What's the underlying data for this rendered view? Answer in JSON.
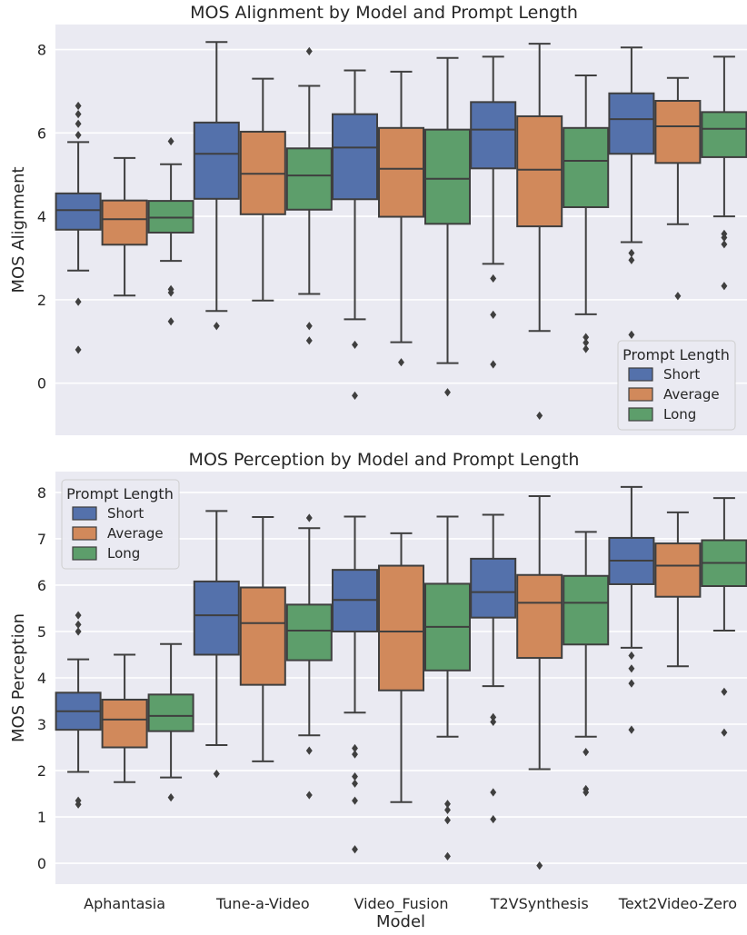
{
  "figure": {
    "xlabel": "Model",
    "categories": [
      "Aphantasia",
      "Tune-a-Video",
      "Video_Fusion",
      "T2VSynthesis",
      "Text2Video-Zero"
    ],
    "legend_title": "Prompt Length",
    "legend_entries": [
      "Short",
      "Average",
      "Long"
    ],
    "colors": {
      "Short": "#5471ab",
      "Average": "#d1895b",
      "Long": "#5d9e6b"
    }
  },
  "chart_data": [
    {
      "type": "box",
      "title": "MOS Alignment by Model and Prompt Length",
      "ylabel": "MOS Alignment",
      "xlabel": "",
      "ylim": [
        -1.25,
        8.6
      ],
      "yticks": [
        0,
        2,
        4,
        6,
        8
      ],
      "legend_placement": "lower-right",
      "grid": true,
      "categories": [
        "Aphantasia",
        "Tune-a-Video",
        "Video_Fusion",
        "T2VSynthesis",
        "Text2Video-Zero"
      ],
      "series": [
        {
          "name": "Short",
          "boxes": [
            {
              "whislo": 2.7,
              "q1": 3.68,
              "med": 4.15,
              "q3": 4.55,
              "whishi": 5.78,
              "fliers": [
                6.65,
                6.45,
                6.22,
                5.95,
                1.95,
                0.8
              ]
            },
            {
              "whislo": 1.73,
              "q1": 4.42,
              "med": 5.5,
              "q3": 6.25,
              "whishi": 8.18,
              "fliers": [
                1.37
              ]
            },
            {
              "whislo": 1.53,
              "q1": 4.41,
              "med": 5.65,
              "q3": 6.45,
              "whishi": 7.5,
              "fliers": [
                0.92,
                -0.3
              ]
            },
            {
              "whislo": 2.86,
              "q1": 5.15,
              "med": 6.08,
              "q3": 6.74,
              "whishi": 7.83,
              "fliers": [
                2.51,
                1.64,
                0.45
              ]
            },
            {
              "whislo": 3.38,
              "q1": 5.5,
              "med": 6.33,
              "q3": 6.95,
              "whishi": 8.05,
              "fliers": [
                3.12,
                2.95,
                1.16
              ]
            }
          ]
        },
        {
          "name": "Average",
          "boxes": [
            {
              "whislo": 2.1,
              "q1": 3.32,
              "med": 3.93,
              "q3": 4.38,
              "whishi": 5.4,
              "fliers": []
            },
            {
              "whislo": 1.98,
              "q1": 4.05,
              "med": 5.02,
              "q3": 6.03,
              "whishi": 7.3,
              "fliers": []
            },
            {
              "whislo": 0.98,
              "q1": 3.99,
              "med": 5.14,
              "q3": 6.12,
              "whishi": 7.47,
              "fliers": [
                0.5
              ]
            },
            {
              "whislo": 1.25,
              "q1": 3.76,
              "med": 5.12,
              "q3": 6.4,
              "whishi": 8.14,
              "fliers": [
                -0.78
              ]
            },
            {
              "whislo": 3.81,
              "q1": 5.28,
              "med": 6.16,
              "q3": 6.77,
              "whishi": 7.32,
              "fliers": [
                2.09
              ]
            }
          ]
        },
        {
          "name": "Long",
          "boxes": [
            {
              "whislo": 2.93,
              "q1": 3.61,
              "med": 3.97,
              "q3": 4.37,
              "whishi": 5.25,
              "fliers": [
                5.8,
                2.25,
                2.17,
                1.48
              ]
            },
            {
              "whislo": 2.14,
              "q1": 4.16,
              "med": 4.98,
              "q3": 5.63,
              "whishi": 7.13,
              "fliers": [
                7.96,
                1.37,
                1.02
              ]
            },
            {
              "whislo": 0.48,
              "q1": 3.82,
              "med": 4.9,
              "q3": 6.08,
              "whishi": 7.8,
              "fliers": [
                -0.22
              ]
            },
            {
              "whislo": 1.65,
              "q1": 4.22,
              "med": 5.33,
              "q3": 6.12,
              "whishi": 7.38,
              "fliers": [
                1.1,
                0.97,
                0.82
              ]
            },
            {
              "whislo": 4.0,
              "q1": 5.42,
              "med": 6.1,
              "q3": 6.5,
              "whishi": 7.83,
              "fliers": [
                3.58,
                3.49,
                3.33,
                2.33
              ]
            }
          ]
        }
      ]
    },
    {
      "type": "box",
      "title": "MOS Perception by Model and Prompt Length",
      "ylabel": "MOS Perception",
      "xlabel": "Model",
      "ylim": [
        -0.45,
        8.45
      ],
      "yticks": [
        0,
        1,
        2,
        3,
        4,
        5,
        6,
        7,
        8
      ],
      "legend_placement": "upper-left",
      "grid": true,
      "categories": [
        "Aphantasia",
        "Tune-a-Video",
        "Video_Fusion",
        "T2VSynthesis",
        "Text2Video-Zero"
      ],
      "series": [
        {
          "name": "Short",
          "boxes": [
            {
              "whislo": 1.97,
              "q1": 2.88,
              "med": 3.28,
              "q3": 3.68,
              "whishi": 4.4,
              "fliers": [
                5.35,
                5.15,
                5.0,
                1.35,
                1.27
              ]
            },
            {
              "whislo": 2.55,
              "q1": 4.5,
              "med": 5.35,
              "q3": 6.08,
              "whishi": 7.6,
              "fliers": [
                1.93
              ]
            },
            {
              "whislo": 3.25,
              "q1": 5.0,
              "med": 5.68,
              "q3": 6.33,
              "whishi": 7.48,
              "fliers": [
                2.48,
                2.35,
                1.87,
                1.72,
                1.35,
                0.3
              ]
            },
            {
              "whislo": 3.82,
              "q1": 5.3,
              "med": 5.85,
              "q3": 6.57,
              "whishi": 7.52,
              "fliers": [
                3.15,
                3.05,
                1.53,
                0.95
              ]
            },
            {
              "whislo": 4.65,
              "q1": 6.02,
              "med": 6.53,
              "q3": 7.02,
              "whishi": 8.12,
              "fliers": [
                4.48,
                4.2,
                3.88,
                2.88
              ]
            }
          ]
        },
        {
          "name": "Average",
          "boxes": [
            {
              "whislo": 1.75,
              "q1": 2.5,
              "med": 3.1,
              "q3": 3.53,
              "whishi": 4.5,
              "fliers": []
            },
            {
              "whislo": 2.2,
              "q1": 3.85,
              "med": 5.18,
              "q3": 5.95,
              "whishi": 7.47,
              "fliers": []
            },
            {
              "whislo": 1.32,
              "q1": 3.73,
              "med": 5.0,
              "q3": 6.42,
              "whishi": 7.12,
              "fliers": []
            },
            {
              "whislo": 2.03,
              "q1": 4.43,
              "med": 5.62,
              "q3": 6.22,
              "whishi": 7.92,
              "fliers": [
                -0.05
              ]
            },
            {
              "whislo": 4.25,
              "q1": 5.75,
              "med": 6.42,
              "q3": 6.9,
              "whishi": 7.57,
              "fliers": []
            }
          ]
        },
        {
          "name": "Long",
          "boxes": [
            {
              "whislo": 1.85,
              "q1": 2.85,
              "med": 3.18,
              "q3": 3.64,
              "whishi": 4.73,
              "fliers": [
                1.42
              ]
            },
            {
              "whislo": 2.76,
              "q1": 4.38,
              "med": 5.02,
              "q3": 5.58,
              "whishi": 7.23,
              "fliers": [
                7.45,
                2.43,
                1.47
              ]
            },
            {
              "whislo": 2.73,
              "q1": 4.16,
              "med": 5.1,
              "q3": 6.03,
              "whishi": 7.48,
              "fliers": [
                1.28,
                1.15,
                0.93,
                0.15
              ]
            },
            {
              "whislo": 2.73,
              "q1": 4.72,
              "med": 5.62,
              "q3": 6.2,
              "whishi": 7.15,
              "fliers": [
                2.4,
                1.6,
                1.53
              ]
            },
            {
              "whislo": 5.02,
              "q1": 5.98,
              "med": 6.48,
              "q3": 6.97,
              "whishi": 7.88,
              "fliers": [
                3.7,
                2.82
              ]
            }
          ]
        }
      ]
    }
  ]
}
